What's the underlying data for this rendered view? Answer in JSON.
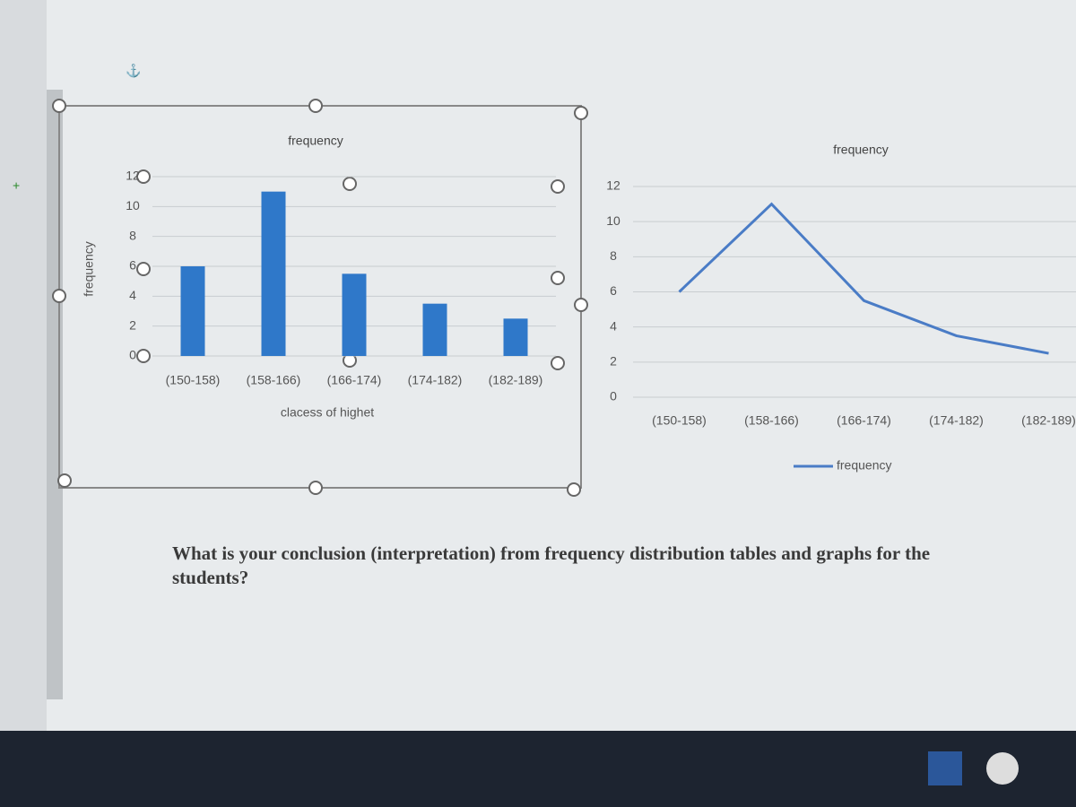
{
  "chart_data": [
    {
      "type": "bar",
      "title": "frequency",
      "x_label": "clacess of highet",
      "y_label": "frequency",
      "categories": [
        "(150-158)",
        "(158-166)",
        "(166-174)",
        "(174-182)",
        "(182-189)"
      ],
      "values": [
        6,
        11,
        5.5,
        3.5,
        2.5
      ],
      "color": "#2f78c9",
      "ylim": [
        0,
        12
      ],
      "yticks": [
        0,
        2,
        4,
        6,
        8,
        10,
        12
      ],
      "grid": true
    },
    {
      "type": "line",
      "title": "frequency",
      "categories": [
        "(150-158)",
        "(158-166)",
        "(166-174)",
        "(174-182)",
        "(182-189)"
      ],
      "series": [
        {
          "name": "frequency",
          "color": "#4a7cc6",
          "values": [
            6,
            11,
            5.5,
            3.5,
            2.5
          ]
        }
      ],
      "ylim": [
        0,
        12
      ],
      "yticks": [
        0,
        2,
        4,
        6,
        8,
        10,
        12
      ],
      "grid": true,
      "legend": "bottom"
    }
  ],
  "document": {
    "question": "What is your conclusion (interpretation) from frequency distribution tables and graphs for the students?"
  }
}
